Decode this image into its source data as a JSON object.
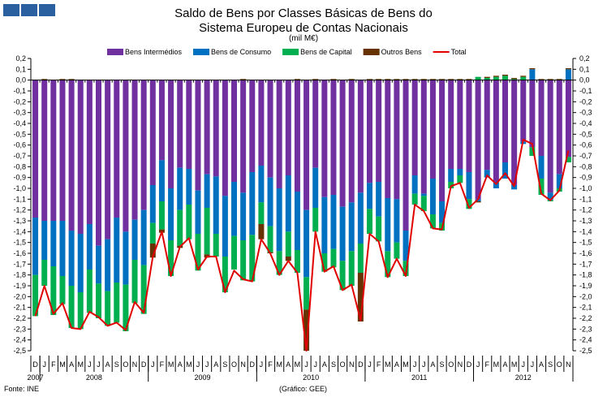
{
  "chart_data": {
    "type": "bar",
    "title": "Saldo de Bens por Classes Básicas de Bens do",
    "title_line2": "Sistema Europeu de Contas Nacionais",
    "subtitle": "(mil M€)",
    "ylim": [
      -2.5,
      0.2
    ],
    "ystep": 0.1,
    "y_tick_labels": [
      "0,2",
      "0,1",
      "0,0",
      "-0,1",
      "-0,2",
      "-0,3",
      "-0,4",
      "-0,5",
      "-0,6",
      "-0,7",
      "-0,8",
      "-0,9",
      "-1,0",
      "-1,1",
      "-1,2",
      "-1,3",
      "-1,4",
      "-1,5",
      "-1,6",
      "-1,7",
      "-1,8",
      "-1,9",
      "-2,0",
      "-2,1",
      "-2,2",
      "-2,3",
      "-2,4",
      "-2,5"
    ],
    "legend_placement": "top",
    "categories": [
      "D",
      "J",
      "F",
      "M",
      "A",
      "M",
      "J",
      "J",
      "A",
      "S",
      "O",
      "N",
      "D",
      "J",
      "F",
      "M",
      "A",
      "M",
      "J",
      "J",
      "A",
      "S",
      "O",
      "N",
      "D",
      "J",
      "F",
      "M",
      "A",
      "M",
      "J",
      "J",
      "A",
      "S",
      "O",
      "N",
      "D",
      "J",
      "F",
      "M",
      "A",
      "M",
      "J",
      "J",
      "A",
      "S",
      "O",
      "N",
      "D",
      "J",
      "F",
      "M",
      "A",
      "M",
      "J",
      "J",
      "A",
      "S",
      "O",
      "N"
    ],
    "years": [
      {
        "label": "2007",
        "start": 0,
        "count": 1
      },
      {
        "label": "2008",
        "start": 1,
        "count": 12
      },
      {
        "label": "2009",
        "start": 13,
        "count": 12
      },
      {
        "label": "2010",
        "start": 25,
        "count": 12
      },
      {
        "label": "2011",
        "start": 37,
        "count": 12
      },
      {
        "label": "2012",
        "start": 49,
        "count": 11
      }
    ],
    "series": [
      {
        "name": "Bens Intermédios",
        "color": "#7030A0",
        "values": [
          -1.27,
          -1.3,
          -1.3,
          -1.3,
          -1.39,
          -1.42,
          -1.33,
          -1.53,
          -1.47,
          -1.27,
          -1.4,
          -1.29,
          -1.2,
          -0.97,
          -0.74,
          -1.0,
          -0.81,
          -0.82,
          -1.02,
          -0.87,
          -0.89,
          -1.07,
          -0.94,
          -1.04,
          -0.85,
          -0.79,
          -0.9,
          -1.0,
          -0.88,
          -1.03,
          -1.2,
          -0.81,
          -1.08,
          -1.06,
          -1.17,
          -1.13,
          -1.04,
          -0.95,
          -0.94,
          -1.09,
          -1.1,
          -1.39,
          -0.88,
          -1.05,
          -0.91,
          -1.12,
          -0.82,
          -0.82,
          -0.85,
          -1.1,
          -0.83,
          -0.94,
          -0.76,
          -0.97,
          -0.57,
          -0.62,
          -0.7,
          -1.04,
          -0.87,
          -0.71
        ]
      },
      {
        "name": "Bens de Consumo",
        "color": "#0070C0",
        "values": [
          -0.53,
          -0.36,
          -0.42,
          -0.51,
          -0.51,
          -0.54,
          -0.42,
          -0.35,
          -0.48,
          -0.6,
          -0.49,
          -0.37,
          -0.51,
          -0.35,
          -0.38,
          -0.48,
          -0.39,
          -0.33,
          -0.4,
          -0.31,
          -0.53,
          -0.56,
          -0.5,
          -0.44,
          -0.58,
          -0.34,
          -0.45,
          -0.58,
          -0.52,
          -0.54,
          -0.62,
          -0.37,
          -0.52,
          -0.5,
          -0.5,
          -0.45,
          -0.47,
          -0.24,
          -0.32,
          -0.49,
          -0.4,
          -0.28,
          -0.17,
          -0.02,
          -0.33,
          -0.2,
          -0.12,
          -0.06,
          -0.25,
          -0.02,
          -0.07,
          -0.06,
          -0.15,
          -0.04,
          -0.02,
          0.1,
          -0.21,
          -0.07,
          -0.13,
          0.1
        ]
      },
      {
        "name": "Bens de Capital",
        "color": "#00B050",
        "values": [
          -0.38,
          -0.24,
          -0.45,
          -0.26,
          -0.39,
          -0.34,
          -0.4,
          -0.32,
          -0.32,
          -0.37,
          -0.43,
          -0.4,
          -0.45,
          -0.19,
          -0.26,
          -0.33,
          -0.33,
          -0.32,
          -0.34,
          -0.43,
          -0.21,
          -0.33,
          -0.31,
          -0.37,
          -0.43,
          -0.2,
          -0.24,
          -0.22,
          -0.23,
          -0.21,
          -0.3,
          -0.22,
          -0.17,
          -0.17,
          -0.27,
          -0.32,
          -0.27,
          -0.23,
          -0.23,
          -0.24,
          -0.15,
          -0.14,
          -0.1,
          -0.14,
          -0.13,
          -0.07,
          -0.06,
          -0.07,
          -0.09,
          0.03,
          0.02,
          0.03,
          0.04,
          0.01,
          0.03,
          -0.08,
          -0.15,
          -0.01,
          -0.03,
          -0.05
        ]
      },
      {
        "name": "Outros Bens",
        "color": "#663300",
        "values": [
          0,
          0.01,
          0,
          0.01,
          0.01,
          0,
          0,
          0,
          0,
          0,
          0,
          0,
          0,
          -0.13,
          -0.03,
          0,
          -0.02,
          0,
          0,
          -0.03,
          0,
          0,
          0,
          0.01,
          0,
          -0.14,
          -0.01,
          0,
          -0.04,
          0.01,
          -0.38,
          0.01,
          0,
          0.01,
          0,
          0.01,
          -0.45,
          0.01,
          0.01,
          0.01,
          0.01,
          0.01,
          0.01,
          0.01,
          0.01,
          0.01,
          0.01,
          0.01,
          0.01,
          -0.01,
          0.01,
          0.01,
          0.01,
          0.01,
          0.01,
          0.01,
          0.01,
          0.01,
          0.01,
          0.01
        ]
      },
      {
        "name": "Total",
        "color": "#E00000",
        "type": "line",
        "values": [
          -2.18,
          -1.9,
          -2.16,
          -2.06,
          -2.29,
          -2.3,
          -2.14,
          -2.19,
          -2.27,
          -2.24,
          -2.31,
          -2.05,
          -2.15,
          -1.63,
          -1.4,
          -1.81,
          -1.54,
          -1.46,
          -1.75,
          -1.63,
          -1.63,
          -1.96,
          -1.76,
          -1.84,
          -1.86,
          -1.47,
          -1.6,
          -1.8,
          -1.67,
          -1.78,
          -2.5,
          -1.4,
          -1.77,
          -1.72,
          -1.94,
          -1.89,
          -2.22,
          -1.42,
          -1.49,
          -1.82,
          -1.65,
          -1.81,
          -1.15,
          -1.21,
          -1.37,
          -1.38,
          -0.98,
          -0.95,
          -1.18,
          -1.1,
          -0.88,
          -0.96,
          -0.86,
          -0.98,
          -0.55,
          -0.59,
          -1.05,
          -1.11,
          -1.02,
          -0.65
        ]
      }
    ]
  },
  "footer": {
    "source": "Fonte: INE",
    "credit": "(Gráfico: GEE)"
  }
}
